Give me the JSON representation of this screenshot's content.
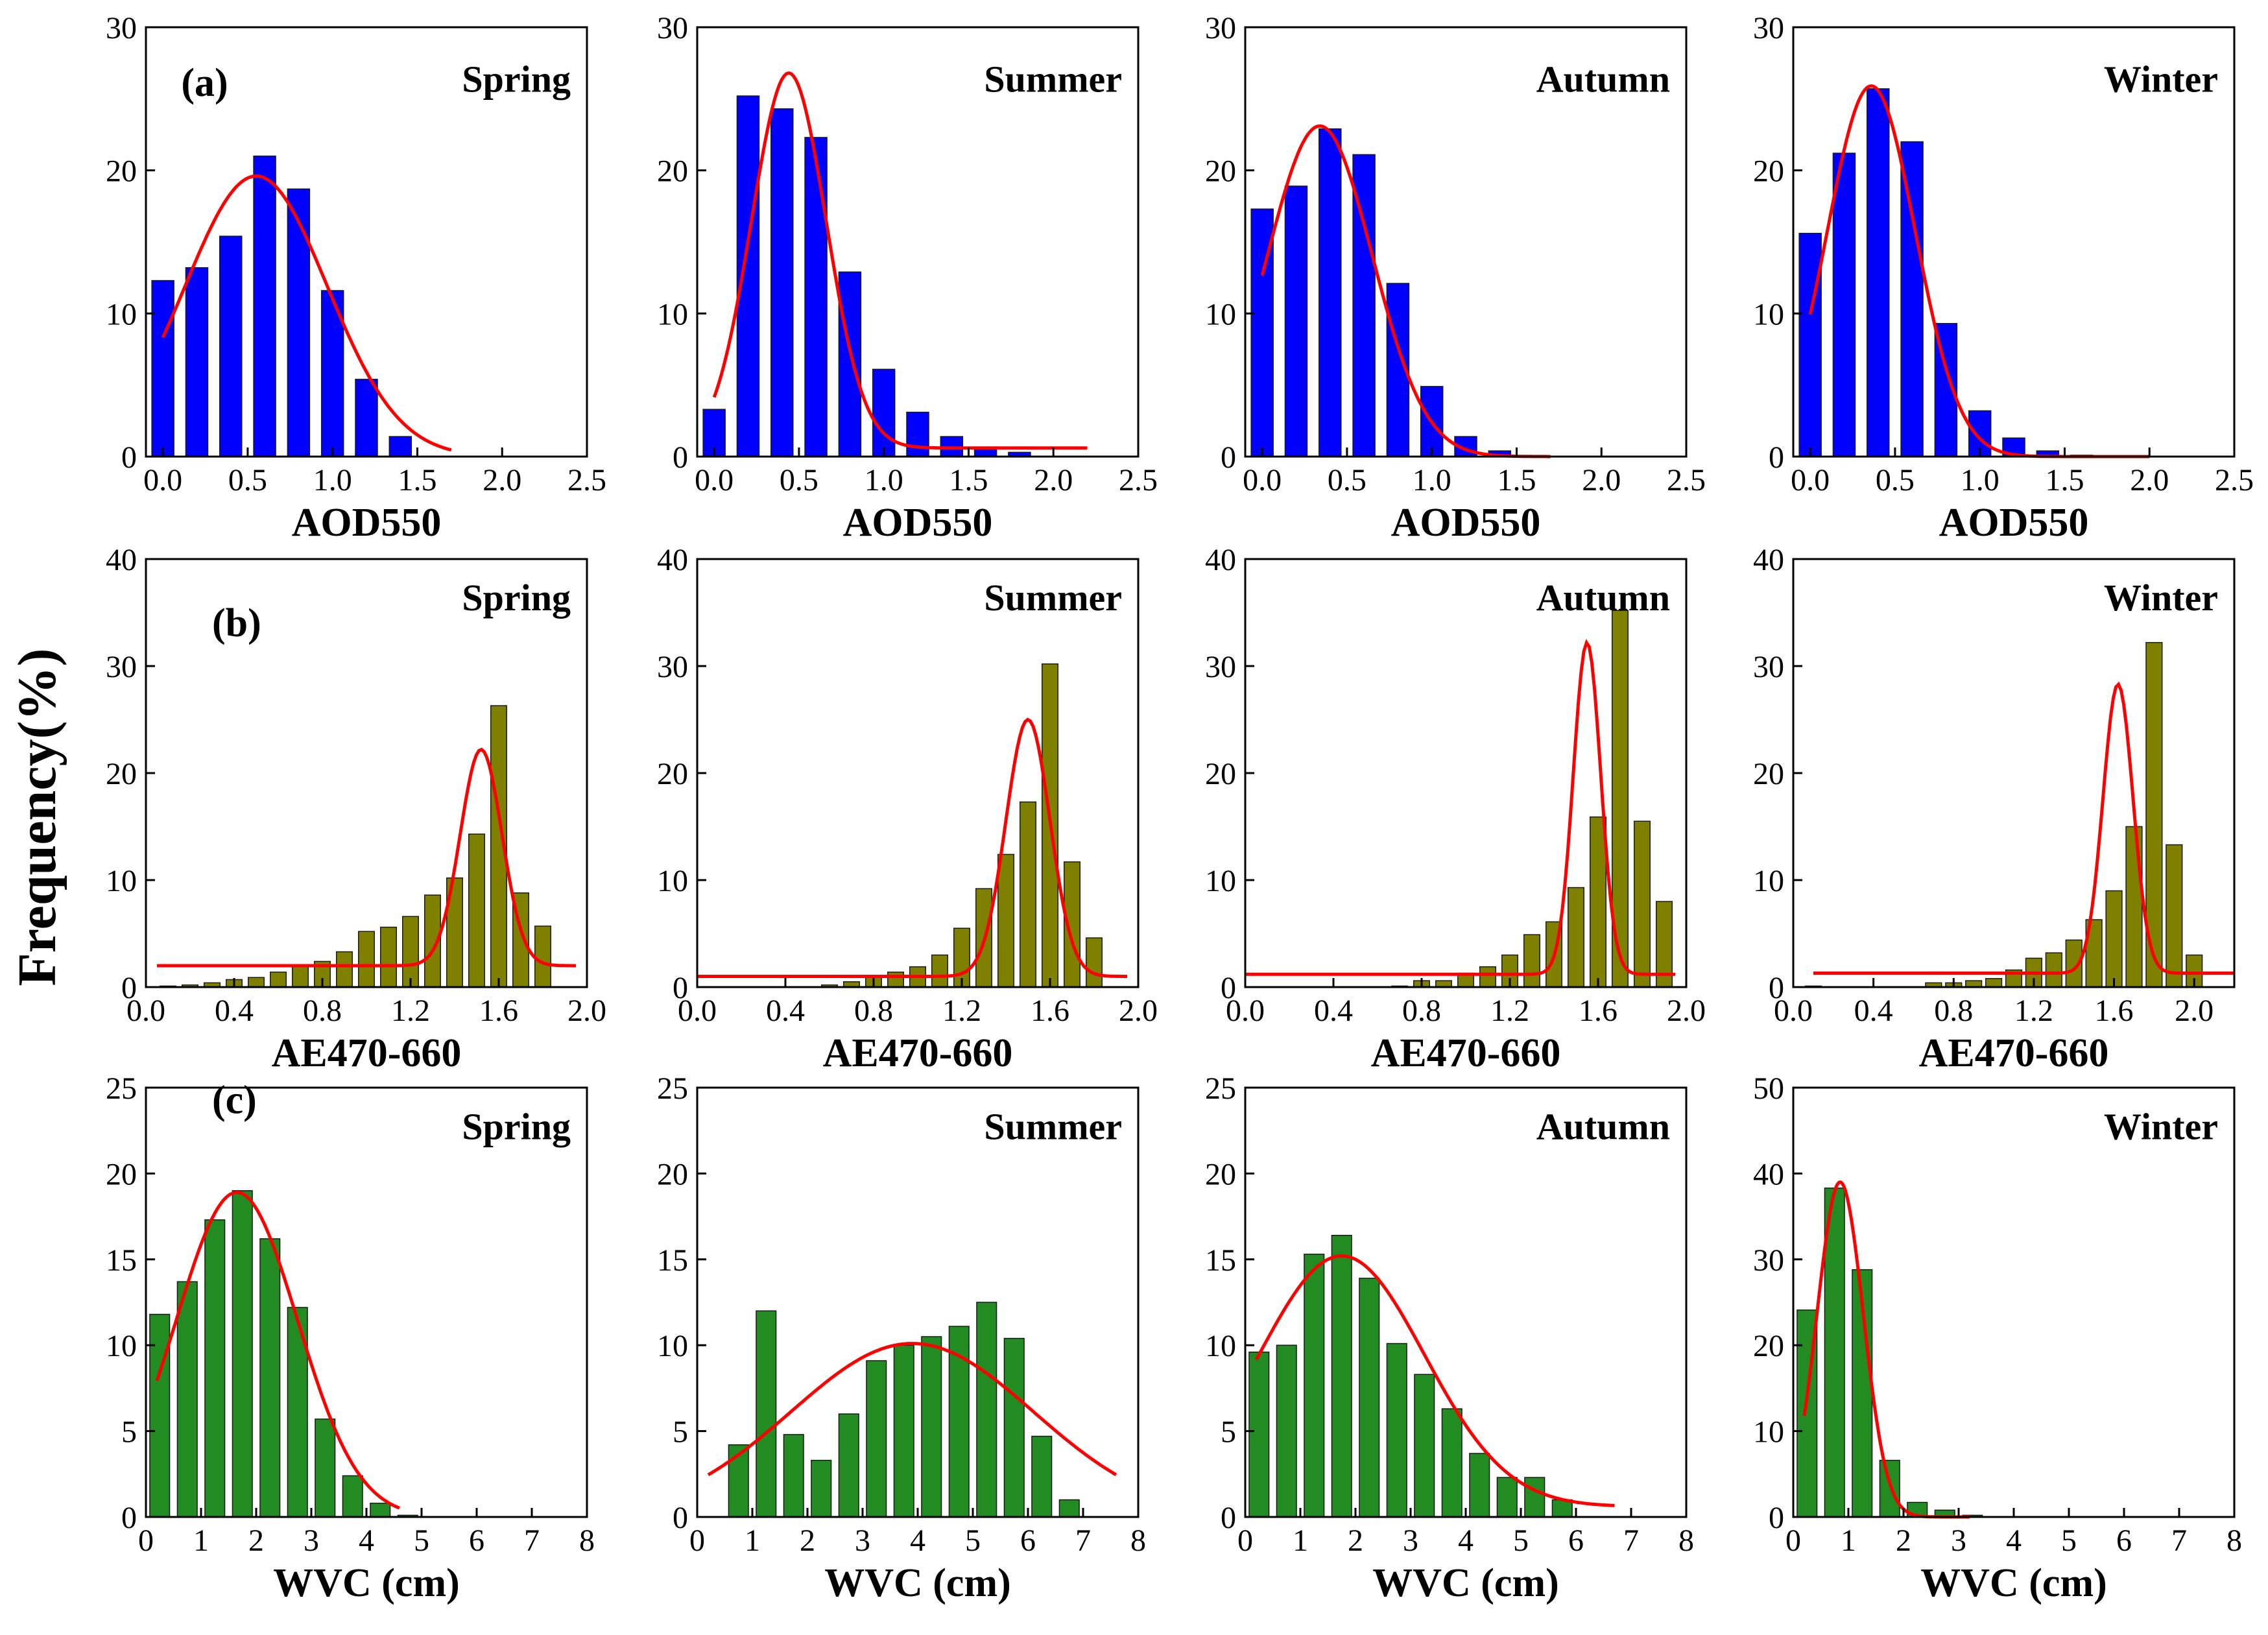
{
  "figure": {
    "y_label": "Frequency(%)"
  },
  "chart_data": [
    {
      "type": "bar",
      "row": "a",
      "panel_tag": "(a)",
      "season": "Spring",
      "xlabel": "AOD550",
      "ylabel": "Frequency(%)",
      "xlim": [
        -0.1,
        2.5
      ],
      "ylim": [
        0,
        30
      ],
      "xticks": [
        0,
        0.5,
        1.0,
        1.5,
        2.0,
        2.5
      ],
      "xtick_labels": [
        "0.0",
        "0.5",
        "1.0",
        "1.5",
        "2.0",
        "2.5"
      ],
      "yticks": [
        0,
        10,
        20,
        30
      ],
      "bar_color": "#0000ff",
      "bar_width": 0.13,
      "bars_x": [
        0.0,
        0.2,
        0.4,
        0.6,
        0.8,
        1.0,
        1.2,
        1.4
      ],
      "values": [
        12.3,
        13.2,
        15.4,
        21.0,
        18.7,
        11.6,
        5.4,
        1.4
      ],
      "fit": {
        "color": "#ff0000",
        "type": "gaussian",
        "y0": 0,
        "amp": 19.6,
        "center": 0.55,
        "sigma": 0.42,
        "x_range": [
          0,
          1.7
        ]
      }
    },
    {
      "type": "bar",
      "row": "a",
      "panel_tag": "",
      "season": "Summer",
      "xlabel": "AOD550",
      "ylabel": "Frequency(%)",
      "xlim": [
        -0.1,
        2.5
      ],
      "ylim": [
        0,
        30
      ],
      "xticks": [
        0,
        0.5,
        1.0,
        1.5,
        2.0,
        2.5
      ],
      "xtick_labels": [
        "0.0",
        "0.5",
        "1.0",
        "1.5",
        "2.0",
        "2.5"
      ],
      "yticks": [
        0,
        10,
        20,
        30
      ],
      "bar_color": "#0000ff",
      "bar_width": 0.13,
      "bars_x": [
        0.0,
        0.2,
        0.4,
        0.6,
        0.8,
        1.0,
        1.2,
        1.4,
        1.6,
        1.8
      ],
      "values": [
        3.3,
        25.2,
        24.3,
        22.3,
        12.9,
        6.1,
        3.1,
        1.4,
        0.5,
        0.3
      ],
      "fit": {
        "color": "#ff0000",
        "type": "gaussian",
        "y0": 0.6,
        "amp": 26.2,
        "center": 0.44,
        "sigma": 0.22,
        "x_range": [
          0,
          2.2
        ]
      }
    },
    {
      "type": "bar",
      "row": "a",
      "panel_tag": "",
      "season": "Autumn",
      "xlabel": "AOD550",
      "ylabel": "Frequency(%)",
      "xlim": [
        -0.1,
        2.5
      ],
      "ylim": [
        0,
        30
      ],
      "xticks": [
        0,
        0.5,
        1.0,
        1.5,
        2.0,
        2.5
      ],
      "xtick_labels": [
        "0.0",
        "0.5",
        "1.0",
        "1.5",
        "2.0",
        "2.5"
      ],
      "yticks": [
        0,
        10,
        20,
        30
      ],
      "bar_color": "#0000ff",
      "bar_width": 0.13,
      "bars_x": [
        0.0,
        0.2,
        0.4,
        0.6,
        0.8,
        1.0,
        1.2,
        1.4
      ],
      "values": [
        17.3,
        18.9,
        22.9,
        21.1,
        12.1,
        4.9,
        1.4,
        0.4
      ],
      "fit": {
        "color": "#ff0000",
        "type": "gaussian",
        "y0": 0,
        "amp": 23.1,
        "center": 0.34,
        "sigma": 0.31,
        "x_range": [
          0,
          1.7
        ]
      }
    },
    {
      "type": "bar",
      "row": "a",
      "panel_tag": "",
      "season": "Winter",
      "xlabel": "AOD550",
      "ylabel": "Frequency(%)",
      "xlim": [
        -0.1,
        2.5
      ],
      "ylim": [
        0,
        30
      ],
      "xticks": [
        0,
        0.5,
        1.0,
        1.5,
        2.0,
        2.5
      ],
      "xtick_labels": [
        "0.0",
        "0.5",
        "1.0",
        "1.5",
        "2.0",
        "2.5"
      ],
      "yticks": [
        0,
        10,
        20,
        30
      ],
      "bar_color": "#0000ff",
      "bar_width": 0.13,
      "bars_x": [
        0.0,
        0.2,
        0.4,
        0.6,
        0.8,
        1.0,
        1.2,
        1.4,
        1.6
      ],
      "values": [
        15.6,
        21.2,
        25.7,
        22.0,
        9.3,
        3.2,
        1.3,
        0.4,
        0.1
      ],
      "fit": {
        "color": "#ff0000",
        "type": "gaussian",
        "y0": 0,
        "amp": 25.9,
        "center": 0.36,
        "sigma": 0.26,
        "x_range": [
          0,
          2.0
        ]
      }
    },
    {
      "type": "bar",
      "row": "b",
      "panel_tag": "(b)",
      "season": "Spring",
      "xlabel": "AE470-660",
      "ylabel": "Frequency(%)",
      "xlim": [
        0,
        2.0
      ],
      "ylim": [
        0,
        40
      ],
      "xticks": [
        0,
        0.4,
        0.8,
        1.2,
        1.6,
        2.0
      ],
      "xtick_labels": [
        "0.0",
        "0.4",
        "0.8",
        "1.2",
        "1.6",
        "2.0"
      ],
      "yticks": [
        0,
        10,
        20,
        30,
        40
      ],
      "bar_color": "#808000",
      "bar_width": 0.072,
      "bars_x": [
        0.1,
        0.2,
        0.3,
        0.4,
        0.5,
        0.6,
        0.7,
        0.8,
        0.9,
        1.0,
        1.1,
        1.2,
        1.3,
        1.4,
        1.5,
        1.6,
        1.7,
        1.8
      ],
      "values": [
        0.1,
        0.2,
        0.4,
        0.7,
        0.9,
        1.4,
        1.9,
        2.4,
        3.3,
        5.2,
        5.6,
        6.6,
        8.6,
        10.2,
        14.3,
        26.3,
        8.8,
        5.7
      ],
      "fit": {
        "color": "#ff0000",
        "type": "gaussian",
        "y0": 2.0,
        "amp": 20.2,
        "center": 1.52,
        "sigma": 0.095,
        "x_range": [
          0.05,
          1.95
        ]
      }
    },
    {
      "type": "bar",
      "row": "b",
      "panel_tag": "",
      "season": "Summer",
      "xlabel": "AE470-660",
      "ylabel": "Frequency(%)",
      "xlim": [
        0,
        2.0
      ],
      "ylim": [
        0,
        40
      ],
      "xticks": [
        0,
        0.4,
        0.8,
        1.2,
        1.6,
        2.0
      ],
      "xtick_labels": [
        "0.0",
        "0.4",
        "0.8",
        "1.2",
        "1.6",
        "2.0"
      ],
      "yticks": [
        0,
        10,
        20,
        30,
        40
      ],
      "bar_color": "#808000",
      "bar_width": 0.072,
      "bars_x": [
        0.6,
        0.7,
        0.8,
        0.9,
        1.0,
        1.1,
        1.2,
        1.3,
        1.4,
        1.5,
        1.6,
        1.7,
        1.8
      ],
      "values": [
        0.2,
        0.5,
        0.9,
        1.4,
        1.9,
        3.0,
        5.5,
        9.2,
        12.4,
        17.3,
        30.2,
        11.7,
        4.6
      ],
      "fit": {
        "color": "#ff0000",
        "type": "gaussian",
        "y0": 1.0,
        "amp": 24.0,
        "center": 1.5,
        "sigma": 0.1,
        "x_range": [
          0,
          1.95
        ]
      }
    },
    {
      "type": "bar",
      "row": "b",
      "panel_tag": "",
      "season": "Autumn",
      "xlabel": "AE470-660",
      "ylabel": "Frequency(%)",
      "xlim": [
        0,
        2.0
      ],
      "ylim": [
        0,
        40
      ],
      "xticks": [
        0,
        0.4,
        0.8,
        1.2,
        1.6,
        2.0
      ],
      "xtick_labels": [
        "0.0",
        "0.4",
        "0.8",
        "1.2",
        "1.6",
        "2.0"
      ],
      "yticks": [
        0,
        10,
        20,
        30,
        40
      ],
      "bar_color": "#808000",
      "bar_width": 0.072,
      "bars_x": [
        0.7,
        0.8,
        0.9,
        1.0,
        1.1,
        1.2,
        1.3,
        1.4,
        1.5,
        1.6,
        1.7,
        1.8,
        1.9
      ],
      "values": [
        0.1,
        0.6,
        0.6,
        1.3,
        1.9,
        3.0,
        4.9,
        6.1,
        9.3,
        15.9,
        35.2,
        15.5,
        8.0
      ],
      "fit": {
        "color": "#ff0000",
        "type": "gaussian",
        "y0": 1.2,
        "amp": 31.0,
        "center": 1.55,
        "sigma": 0.062,
        "x_range": [
          0,
          1.95
        ]
      }
    },
    {
      "type": "bar",
      "row": "b",
      "panel_tag": "",
      "season": "Winter",
      "xlabel": "AE470-660",
      "ylabel": "Frequency(%)",
      "xlim": [
        0,
        2.2
      ],
      "ylim": [
        0,
        40
      ],
      "xticks": [
        0,
        0.4,
        0.8,
        1.2,
        1.6,
        2.0
      ],
      "xtick_labels": [
        "0.0",
        "0.4",
        "0.8",
        "1.2",
        "1.6",
        "2.0"
      ],
      "yticks": [
        0,
        10,
        20,
        30,
        40
      ],
      "bar_color": "#808000",
      "bar_width": 0.08,
      "bars_x": [
        0.1,
        0.7,
        0.8,
        0.9,
        1.0,
        1.1,
        1.2,
        1.3,
        1.4,
        1.5,
        1.6,
        1.7,
        1.8,
        1.9,
        2.0
      ],
      "values": [
        0.1,
        0.4,
        0.4,
        0.6,
        0.8,
        1.6,
        2.7,
        3.2,
        4.4,
        6.3,
        9.0,
        15.0,
        32.2,
        13.3,
        3.0
      ],
      "fit": {
        "color": "#ff0000",
        "type": "gaussian",
        "y0": 1.3,
        "amp": 27.0,
        "center": 1.62,
        "sigma": 0.075,
        "x_range": [
          0.1,
          2.2
        ]
      }
    },
    {
      "type": "bar",
      "row": "c",
      "panel_tag": "(c)",
      "season": "Spring",
      "xlabel": "WVC (cm)",
      "ylabel": "Frequency(%)",
      "xlim": [
        0,
        8
      ],
      "ylim": [
        0,
        25
      ],
      "xticks": [
        0,
        1,
        2,
        3,
        4,
        5,
        6,
        7,
        8
      ],
      "xtick_labels": [
        "0",
        "1",
        "2",
        "3",
        "4",
        "5",
        "6",
        "7",
        "8"
      ],
      "yticks": [
        0,
        5,
        10,
        15,
        20,
        25
      ],
      "bar_color": "#228b22",
      "bar_width": 0.36,
      "bars_x": [
        0.25,
        0.75,
        1.25,
        1.75,
        2.25,
        2.75,
        3.25,
        3.75,
        4.25,
        4.75
      ],
      "values": [
        11.8,
        13.7,
        17.3,
        19.0,
        16.2,
        12.2,
        5.7,
        2.4,
        0.8,
        0.1
      ],
      "fit": {
        "color": "#ff0000",
        "type": "gaussian",
        "y0": 0,
        "amp": 18.9,
        "center": 1.65,
        "sigma": 1.1,
        "x_range": [
          0.2,
          4.6
        ]
      }
    },
    {
      "type": "bar",
      "row": "c",
      "panel_tag": "",
      "season": "Summer",
      "xlabel": "WVC (cm)",
      "ylabel": "Frequency(%)",
      "xlim": [
        0,
        8
      ],
      "ylim": [
        0,
        25
      ],
      "xticks": [
        0,
        1,
        2,
        3,
        4,
        5,
        6,
        7,
        8
      ],
      "xtick_labels": [
        "0",
        "1",
        "2",
        "3",
        "4",
        "5",
        "6",
        "7",
        "8"
      ],
      "yticks": [
        0,
        5,
        10,
        15,
        20,
        25
      ],
      "bar_color": "#228b22",
      "bar_width": 0.36,
      "bars_x": [
        0.75,
        1.25,
        1.75,
        2.25,
        2.75,
        3.25,
        3.75,
        4.25,
        4.75,
        5.25,
        5.75,
        6.25,
        6.75
      ],
      "values": [
        4.2,
        12.0,
        4.8,
        3.3,
        6.0,
        9.1,
        10.0,
        10.5,
        11.1,
        12.5,
        10.4,
        4.7,
        1.0
      ],
      "fit": {
        "color": "#ff0000",
        "type": "gaussian",
        "y0": 0,
        "amp": 10.1,
        "center": 3.9,
        "sigma": 2.2,
        "x_range": [
          0.2,
          7.6
        ]
      }
    },
    {
      "type": "bar",
      "row": "c",
      "panel_tag": "",
      "season": "Autumn",
      "xlabel": "WVC (cm)",
      "ylabel": "Frequency(%)",
      "xlim": [
        0,
        8
      ],
      "ylim": [
        0,
        25
      ],
      "xticks": [
        0,
        1,
        2,
        3,
        4,
        5,
        6,
        7,
        8
      ],
      "xtick_labels": [
        "0",
        "1",
        "2",
        "3",
        "4",
        "5",
        "6",
        "7",
        "8"
      ],
      "yticks": [
        0,
        5,
        10,
        15,
        20,
        25
      ],
      "bar_color": "#228b22",
      "bar_width": 0.36,
      "bars_x": [
        0.25,
        0.75,
        1.25,
        1.75,
        2.25,
        2.75,
        3.25,
        3.75,
        4.25,
        4.75,
        5.25,
        5.75
      ],
      "values": [
        9.6,
        10.0,
        15.3,
        16.4,
        13.9,
        10.1,
        8.3,
        6.3,
        3.7,
        2.3,
        2.3,
        1.0
      ],
      "fit": {
        "color": "#ff0000",
        "type": "gaussian",
        "y0": 0.6,
        "amp": 14.6,
        "center": 1.75,
        "sigma": 1.5,
        "x_range": [
          0.2,
          6.7
        ]
      }
    },
    {
      "type": "bar",
      "row": "c",
      "panel_tag": "",
      "season": "Winter",
      "xlabel": "WVC (cm)",
      "ylabel": "Frequency(%)",
      "xlim": [
        0,
        8
      ],
      "ylim": [
        0,
        50
      ],
      "xticks": [
        0,
        1,
        2,
        3,
        4,
        5,
        6,
        7,
        8
      ],
      "xtick_labels": [
        "0",
        "1",
        "2",
        "3",
        "4",
        "5",
        "6",
        "7",
        "8"
      ],
      "yticks": [
        0,
        10,
        20,
        30,
        40,
        50
      ],
      "bar_color": "#228b22",
      "bar_width": 0.36,
      "bars_x": [
        0.25,
        0.75,
        1.25,
        1.75,
        2.25,
        2.75,
        3.25
      ],
      "values": [
        24.1,
        38.3,
        28.8,
        6.6,
        1.7,
        0.8,
        0.2
      ],
      "fit": {
        "color": "#ff0000",
        "type": "gaussian",
        "y0": 0,
        "amp": 39.0,
        "center": 0.85,
        "sigma": 0.42,
        "x_range": [
          0.2,
          3.2
        ]
      }
    }
  ]
}
